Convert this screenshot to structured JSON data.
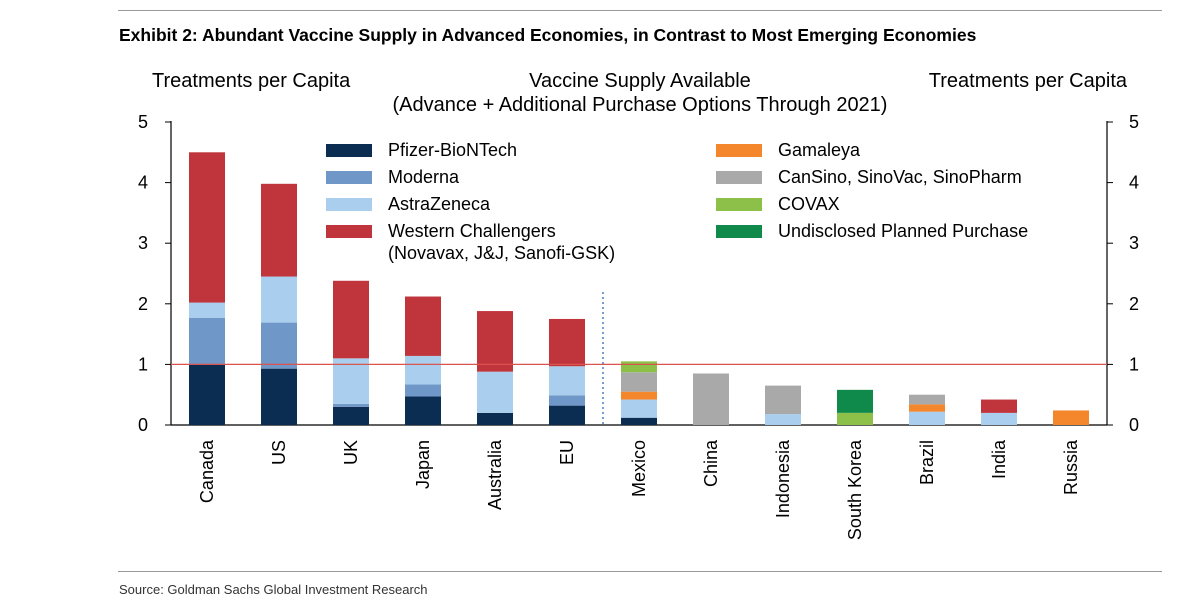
{
  "header": {
    "title": "Exhibit 2: Abundant Vaccine Supply in Advanced Economies, in Contrast to Most Emerging Economies"
  },
  "footer": {
    "source": "Source: Goldman Sachs Global Investment Research"
  },
  "chart_data": {
    "type": "stacked-bar",
    "title": "Vaccine Supply Available",
    "subtitle": "(Advance + Additional Purchase Options Through 2021)",
    "ylabel_left": "Treatments per Capita",
    "ylabel_right": "Treatments per Capita",
    "ylim": [
      0,
      5
    ],
    "yticks": [
      "0",
      "1",
      "2",
      "3",
      "4",
      "5"
    ],
    "reference_line": 1,
    "divider_after_index": 5,
    "categories": [
      "Canada",
      "US",
      "UK",
      "Japan",
      "Australia",
      "EU",
      "Mexico",
      "China",
      "Indonesia",
      "South Korea",
      "Brazil",
      "India",
      "Russia"
    ],
    "series": [
      {
        "name": "Pfizer-BioNTech",
        "color": "#0b2d52",
        "values": [
          1.0,
          0.93,
          0.3,
          0.47,
          0.2,
          0.32,
          0.12,
          0,
          0,
          0,
          0,
          0,
          0
        ]
      },
      {
        "name": "Moderna",
        "color": "#6f97c8",
        "values": [
          0.77,
          0.76,
          0.05,
          0.2,
          0,
          0.17,
          0,
          0,
          0,
          0,
          0,
          0,
          0
        ]
      },
      {
        "name": "AstraZeneca",
        "color": "#aacfee",
        "values": [
          0.25,
          0.76,
          0.75,
          0.47,
          0.68,
          0.48,
          0.3,
          0,
          0.18,
          0,
          0.22,
          0.2,
          0
        ]
      },
      {
        "name": "Western Challengers\n(Novavax, J&J, Sanofi-GSK)",
        "color": "#c0343b",
        "values": [
          2.48,
          1.53,
          1.28,
          0.98,
          1.0,
          0.78,
          0,
          0,
          0,
          0,
          0,
          0.22,
          0
        ]
      },
      {
        "name": "Gamaleya",
        "color": "#f4862b",
        "values": [
          0,
          0,
          0,
          0,
          0,
          0,
          0.13,
          0,
          0,
          0,
          0.12,
          0,
          0.24
        ]
      },
      {
        "name": "CanSino, SinoVac, SinoPharm",
        "color": "#a9a9a9",
        "values": [
          0,
          0,
          0,
          0,
          0,
          0,
          0.32,
          0.85,
          0.47,
          0,
          0.16,
          0,
          0
        ]
      },
      {
        "name": "COVAX",
        "color": "#8cc049",
        "values": [
          0,
          0,
          0,
          0,
          0,
          0,
          0.18,
          0,
          0,
          0.2,
          0,
          0,
          0
        ]
      },
      {
        "name": "Undisclosed Planned Purchase",
        "color": "#0f8a4a",
        "values": [
          0,
          0,
          0,
          0,
          0,
          0,
          0,
          0,
          0,
          0.38,
          0,
          0,
          0
        ]
      }
    ],
    "legend_columns": [
      [
        0,
        1,
        2,
        3
      ],
      [
        4,
        5,
        6,
        7
      ]
    ],
    "refline_color": "#d9534f",
    "divider_color": "#4a7fc1"
  }
}
